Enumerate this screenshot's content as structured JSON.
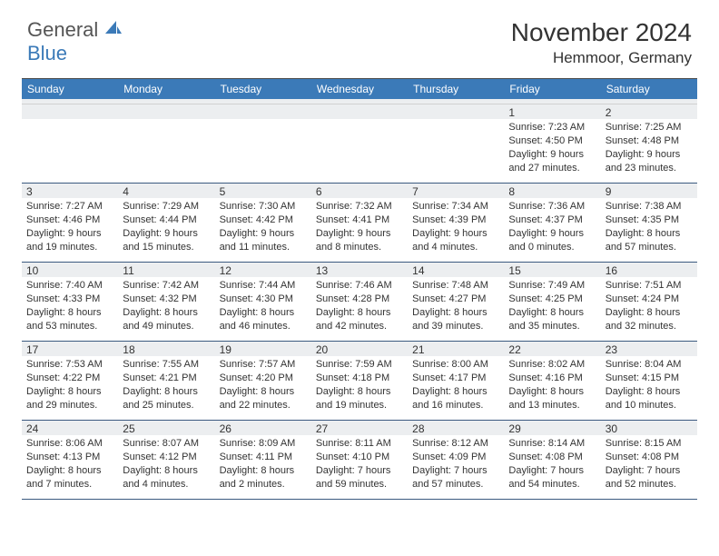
{
  "logo": {
    "text1": "General",
    "text2": "Blue"
  },
  "header": {
    "title": "November 2024",
    "location": "Hemmoor, Germany"
  },
  "colors": {
    "header_bar": "#3b7ab8",
    "daynum_bg": "#eceef0",
    "text": "#333333",
    "rule": "#3b5a80",
    "logo_blue": "#3b7ab8"
  },
  "daysOfWeek": [
    "Sunday",
    "Monday",
    "Tuesday",
    "Wednesday",
    "Thursday",
    "Friday",
    "Saturday"
  ],
  "weeks": [
    [
      {
        "n": "",
        "sr": "",
        "ss": "",
        "dl": ""
      },
      {
        "n": "",
        "sr": "",
        "ss": "",
        "dl": ""
      },
      {
        "n": "",
        "sr": "",
        "ss": "",
        "dl": ""
      },
      {
        "n": "",
        "sr": "",
        "ss": "",
        "dl": ""
      },
      {
        "n": "",
        "sr": "",
        "ss": "",
        "dl": ""
      },
      {
        "n": "1",
        "sr": "Sunrise: 7:23 AM",
        "ss": "Sunset: 4:50 PM",
        "dl": "Daylight: 9 hours and 27 minutes."
      },
      {
        "n": "2",
        "sr": "Sunrise: 7:25 AM",
        "ss": "Sunset: 4:48 PM",
        "dl": "Daylight: 9 hours and 23 minutes."
      }
    ],
    [
      {
        "n": "3",
        "sr": "Sunrise: 7:27 AM",
        "ss": "Sunset: 4:46 PM",
        "dl": "Daylight: 9 hours and 19 minutes."
      },
      {
        "n": "4",
        "sr": "Sunrise: 7:29 AM",
        "ss": "Sunset: 4:44 PM",
        "dl": "Daylight: 9 hours and 15 minutes."
      },
      {
        "n": "5",
        "sr": "Sunrise: 7:30 AM",
        "ss": "Sunset: 4:42 PM",
        "dl": "Daylight: 9 hours and 11 minutes."
      },
      {
        "n": "6",
        "sr": "Sunrise: 7:32 AM",
        "ss": "Sunset: 4:41 PM",
        "dl": "Daylight: 9 hours and 8 minutes."
      },
      {
        "n": "7",
        "sr": "Sunrise: 7:34 AM",
        "ss": "Sunset: 4:39 PM",
        "dl": "Daylight: 9 hours and 4 minutes."
      },
      {
        "n": "8",
        "sr": "Sunrise: 7:36 AM",
        "ss": "Sunset: 4:37 PM",
        "dl": "Daylight: 9 hours and 0 minutes."
      },
      {
        "n": "9",
        "sr": "Sunrise: 7:38 AM",
        "ss": "Sunset: 4:35 PM",
        "dl": "Daylight: 8 hours and 57 minutes."
      }
    ],
    [
      {
        "n": "10",
        "sr": "Sunrise: 7:40 AM",
        "ss": "Sunset: 4:33 PM",
        "dl": "Daylight: 8 hours and 53 minutes."
      },
      {
        "n": "11",
        "sr": "Sunrise: 7:42 AM",
        "ss": "Sunset: 4:32 PM",
        "dl": "Daylight: 8 hours and 49 minutes."
      },
      {
        "n": "12",
        "sr": "Sunrise: 7:44 AM",
        "ss": "Sunset: 4:30 PM",
        "dl": "Daylight: 8 hours and 46 minutes."
      },
      {
        "n": "13",
        "sr": "Sunrise: 7:46 AM",
        "ss": "Sunset: 4:28 PM",
        "dl": "Daylight: 8 hours and 42 minutes."
      },
      {
        "n": "14",
        "sr": "Sunrise: 7:48 AM",
        "ss": "Sunset: 4:27 PM",
        "dl": "Daylight: 8 hours and 39 minutes."
      },
      {
        "n": "15",
        "sr": "Sunrise: 7:49 AM",
        "ss": "Sunset: 4:25 PM",
        "dl": "Daylight: 8 hours and 35 minutes."
      },
      {
        "n": "16",
        "sr": "Sunrise: 7:51 AM",
        "ss": "Sunset: 4:24 PM",
        "dl": "Daylight: 8 hours and 32 minutes."
      }
    ],
    [
      {
        "n": "17",
        "sr": "Sunrise: 7:53 AM",
        "ss": "Sunset: 4:22 PM",
        "dl": "Daylight: 8 hours and 29 minutes."
      },
      {
        "n": "18",
        "sr": "Sunrise: 7:55 AM",
        "ss": "Sunset: 4:21 PM",
        "dl": "Daylight: 8 hours and 25 minutes."
      },
      {
        "n": "19",
        "sr": "Sunrise: 7:57 AM",
        "ss": "Sunset: 4:20 PM",
        "dl": "Daylight: 8 hours and 22 minutes."
      },
      {
        "n": "20",
        "sr": "Sunrise: 7:59 AM",
        "ss": "Sunset: 4:18 PM",
        "dl": "Daylight: 8 hours and 19 minutes."
      },
      {
        "n": "21",
        "sr": "Sunrise: 8:00 AM",
        "ss": "Sunset: 4:17 PM",
        "dl": "Daylight: 8 hours and 16 minutes."
      },
      {
        "n": "22",
        "sr": "Sunrise: 8:02 AM",
        "ss": "Sunset: 4:16 PM",
        "dl": "Daylight: 8 hours and 13 minutes."
      },
      {
        "n": "23",
        "sr": "Sunrise: 8:04 AM",
        "ss": "Sunset: 4:15 PM",
        "dl": "Daylight: 8 hours and 10 minutes."
      }
    ],
    [
      {
        "n": "24",
        "sr": "Sunrise: 8:06 AM",
        "ss": "Sunset: 4:13 PM",
        "dl": "Daylight: 8 hours and 7 minutes."
      },
      {
        "n": "25",
        "sr": "Sunrise: 8:07 AM",
        "ss": "Sunset: 4:12 PM",
        "dl": "Daylight: 8 hours and 4 minutes."
      },
      {
        "n": "26",
        "sr": "Sunrise: 8:09 AM",
        "ss": "Sunset: 4:11 PM",
        "dl": "Daylight: 8 hours and 2 minutes."
      },
      {
        "n": "27",
        "sr": "Sunrise: 8:11 AM",
        "ss": "Sunset: 4:10 PM",
        "dl": "Daylight: 7 hours and 59 minutes."
      },
      {
        "n": "28",
        "sr": "Sunrise: 8:12 AM",
        "ss": "Sunset: 4:09 PM",
        "dl": "Daylight: 7 hours and 57 minutes."
      },
      {
        "n": "29",
        "sr": "Sunrise: 8:14 AM",
        "ss": "Sunset: 4:08 PM",
        "dl": "Daylight: 7 hours and 54 minutes."
      },
      {
        "n": "30",
        "sr": "Sunrise: 8:15 AM",
        "ss": "Sunset: 4:08 PM",
        "dl": "Daylight: 7 hours and 52 minutes."
      }
    ]
  ]
}
